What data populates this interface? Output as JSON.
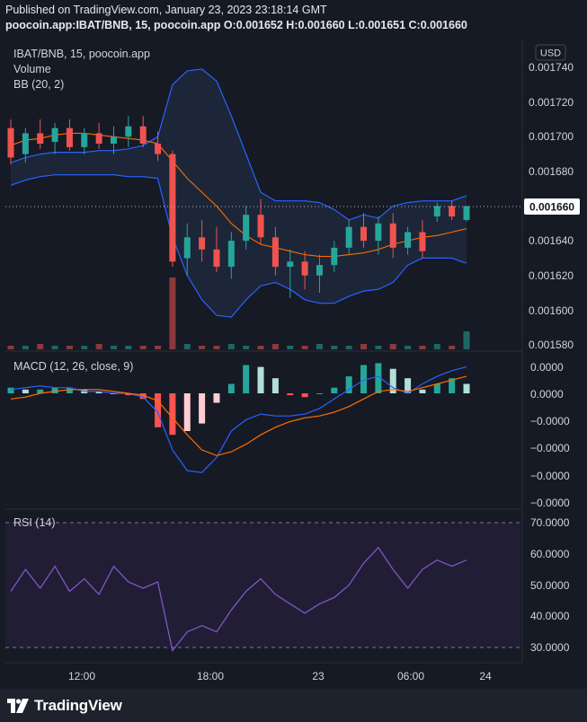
{
  "header": {
    "published": "Published on TradingView.com, January 23, 2023 23:18:14 GMT",
    "symbol_line": "poocoin.app:IBAT/BNB, 15, poocoin.app O:0.001652 H:0.001660 L:0.001651 C:0.001660"
  },
  "price_pane": {
    "symbol": "IBAT/BNB, 15, poocoin.app",
    "volume_label": "Volume",
    "bb_label": "BB (20, 2)",
    "currency": "USD",
    "y_ticks": [
      "0.001740",
      "0.001720",
      "0.001700",
      "0.001680",
      "0.001640",
      "0.001620",
      "0.001600",
      "0.001580"
    ],
    "last_price": "0.001660"
  },
  "macd_pane": {
    "label": "MACD (12, 26, close, 9)",
    "y_ticks": [
      "0.0000",
      "0.0000",
      "−0.0000",
      "−0.0000",
      "−0.0000",
      "−0.0000"
    ]
  },
  "rsi_pane": {
    "label": "RSI (14)",
    "y_ticks": [
      "70.0000",
      "60.0000",
      "50.0000",
      "40.0000",
      "30.0000"
    ]
  },
  "x_axis": {
    "ticks": [
      "12:00",
      "18:00",
      "23",
      "06:00",
      "24"
    ]
  },
  "footer": {
    "brand": "TradingView"
  },
  "colors": {
    "background": "#161a25",
    "up": "#26a69a",
    "down": "#ef5350",
    "bb_band": "#2962ff",
    "bb_fill": "#1c2638",
    "basis": "#ff6d00",
    "rsi": "#7e57c2",
    "price_tag": "#ffffff"
  },
  "chart_data": {
    "type": "candlestick",
    "interval": "15",
    "ylim": [
      0.001575,
      0.001745
    ],
    "bb_upper": [
      0.001685,
      0.001688,
      0.00169,
      0.001691,
      0.001691,
      0.001691,
      0.001692,
      0.001692,
      0.001693,
      0.001695,
      0.0017,
      0.00173,
      0.001738,
      0.001739,
      0.001732,
      0.001712,
      0.00169,
      0.001668,
      0.001663,
      0.001663,
      0.001663,
      0.001662,
      0.001658,
      0.001652,
      0.001655,
      0.001653,
      0.00166,
      0.001662,
      0.001663,
      0.001663,
      0.001663,
      0.001666
    ],
    "bb_basis": [
      0.001695,
      0.001698,
      0.001699,
      0.001701,
      0.001702,
      0.001702,
      0.001701,
      0.0017,
      0.001699,
      0.001698,
      0.001696,
      0.001686,
      0.001676,
      0.001668,
      0.00166,
      0.00165,
      0.001643,
      0.001638,
      0.001636,
      0.001634,
      0.001632,
      0.001631,
      0.001631,
      0.001632,
      0.001633,
      0.001635,
      0.001638,
      0.00164,
      0.001642,
      0.001643,
      0.001645,
      0.001647
    ],
    "bb_lower": [
      0.001672,
      0.001675,
      0.001677,
      0.001678,
      0.001678,
      0.001678,
      0.001678,
      0.001678,
      0.001677,
      0.001677,
      0.001676,
      0.001642,
      0.00162,
      0.001606,
      0.001597,
      0.001596,
      0.001606,
      0.001614,
      0.001616,
      0.001612,
      0.001606,
      0.001604,
      0.001604,
      0.001608,
      0.001611,
      0.001612,
      0.001616,
      0.001626,
      0.00163,
      0.00163,
      0.00163,
      0.001627
    ],
    "candles": [
      {
        "o": 0.001705,
        "h": 0.00171,
        "l": 0.001684,
        "c": 0.001688
      },
      {
        "o": 0.00169,
        "h": 0.001705,
        "l": 0.001685,
        "c": 0.001702
      },
      {
        "o": 0.001702,
        "h": 0.00171,
        "l": 0.001693,
        "c": 0.001696
      },
      {
        "o": 0.001697,
        "h": 0.001708,
        "l": 0.00169,
        "c": 0.001705
      },
      {
        "o": 0.001705,
        "h": 0.00171,
        "l": 0.001692,
        "c": 0.001694
      },
      {
        "o": 0.001694,
        "h": 0.001705,
        "l": 0.00169,
        "c": 0.001702
      },
      {
        "o": 0.001702,
        "h": 0.001708,
        "l": 0.001693,
        "c": 0.001696
      },
      {
        "o": 0.001696,
        "h": 0.001706,
        "l": 0.00169,
        "c": 0.0017
      },
      {
        "o": 0.0017,
        "h": 0.001712,
        "l": 0.001694,
        "c": 0.001706
      },
      {
        "o": 0.001706,
        "h": 0.001712,
        "l": 0.001694,
        "c": 0.001696
      },
      {
        "o": 0.001696,
        "h": 0.001703,
        "l": 0.001686,
        "c": 0.00169
      },
      {
        "o": 0.00169,
        "h": 0.001692,
        "l": 0.001625,
        "c": 0.001628
      },
      {
        "o": 0.00163,
        "h": 0.00165,
        "l": 0.00162,
        "c": 0.001642
      },
      {
        "o": 0.001642,
        "h": 0.001652,
        "l": 0.001628,
        "c": 0.001635
      },
      {
        "o": 0.001635,
        "h": 0.001648,
        "l": 0.001622,
        "c": 0.001625
      },
      {
        "o": 0.001625,
        "h": 0.001645,
        "l": 0.001618,
        "c": 0.00164
      },
      {
        "o": 0.00164,
        "h": 0.00166,
        "l": 0.001635,
        "c": 0.001655
      },
      {
        "o": 0.001655,
        "h": 0.001664,
        "l": 0.001638,
        "c": 0.001642
      },
      {
        "o": 0.001642,
        "h": 0.001648,
        "l": 0.00162,
        "c": 0.001625
      },
      {
        "o": 0.001625,
        "h": 0.001635,
        "l": 0.001607,
        "c": 0.001628
      },
      {
        "o": 0.001628,
        "h": 0.001634,
        "l": 0.001612,
        "c": 0.00162
      },
      {
        "o": 0.00162,
        "h": 0.001632,
        "l": 0.00161,
        "c": 0.001626
      },
      {
        "o": 0.001626,
        "h": 0.00164,
        "l": 0.001622,
        "c": 0.001636
      },
      {
        "o": 0.001636,
        "h": 0.001652,
        "l": 0.001632,
        "c": 0.001648
      },
      {
        "o": 0.001648,
        "h": 0.001656,
        "l": 0.001636,
        "c": 0.00164
      },
      {
        "o": 0.00164,
        "h": 0.001654,
        "l": 0.001632,
        "c": 0.00165
      },
      {
        "o": 0.00165,
        "h": 0.001656,
        "l": 0.00163,
        "c": 0.001636
      },
      {
        "o": 0.001636,
        "h": 0.001648,
        "l": 0.001632,
        "c": 0.001645
      },
      {
        "o": 0.001645,
        "h": 0.001652,
        "l": 0.00163,
        "c": 0.001634
      },
      {
        "o": 0.001654,
        "h": 0.001662,
        "l": 0.001651,
        "c": 0.00166
      },
      {
        "o": 0.00166,
        "h": 0.001663,
        "l": 0.001652,
        "c": 0.001654
      },
      {
        "o": 0.001652,
        "h": 0.00166,
        "l": 0.001651,
        "c": 0.00166
      }
    ],
    "volume": [
      2,
      2,
      3,
      2,
      2,
      2,
      3,
      2,
      2,
      2,
      2,
      40,
      3,
      2,
      2,
      3,
      2,
      2,
      3,
      2,
      2,
      3,
      2,
      2,
      3,
      2,
      3,
      2,
      2,
      3,
      2,
      10
    ],
    "macd_hist": [
      0.3,
      0.2,
      0.2,
      0.3,
      0.3,
      0.2,
      0.1,
      0.0,
      -0.1,
      -0.3,
      -1.8,
      -2.2,
      -2.0,
      -1.6,
      -0.5,
      0.5,
      1.5,
      1.4,
      0.8,
      -0.1,
      -0.2,
      0.0,
      0.3,
      0.9,
      1.5,
      1.6,
      1.3,
      0.8,
      0.2,
      0.5,
      0.8,
      0.5
    ],
    "macd_line": [
      0.2,
      0.3,
      0.4,
      0.3,
      0.3,
      0.1,
      0.1,
      0.0,
      0.0,
      -0.2,
      -1.0,
      -3.0,
      -4.1,
      -4.2,
      -3.4,
      -2.0,
      -1.4,
      -1.1,
      -1.2,
      -1.2,
      -1.1,
      -0.8,
      -0.3,
      0.2,
      0.7,
      0.9,
      0.3,
      0.0,
      0.5,
      0.9,
      1.2,
      1.4
    ],
    "macd_signal": [
      -0.3,
      -0.2,
      0.0,
      0.1,
      0.2,
      0.2,
      0.2,
      0.1,
      0.0,
      -0.1,
      -0.4,
      -1.3,
      -2.2,
      -3.0,
      -3.3,
      -3.1,
      -2.7,
      -2.2,
      -1.8,
      -1.5,
      -1.3,
      -1.2,
      -1.0,
      -0.7,
      -0.3,
      0.1,
      0.2,
      0.1,
      0.3,
      0.5,
      0.7,
      0.9
    ],
    "rsi": [
      48,
      55,
      49,
      56,
      48,
      52,
      47,
      56,
      51,
      49,
      51,
      29,
      35,
      37,
      35,
      42,
      48,
      52,
      47,
      44,
      41,
      44,
      46,
      50,
      57,
      62,
      55,
      49,
      55,
      58,
      56,
      58
    ],
    "rsi_bands": [
      30,
      70
    ]
  }
}
